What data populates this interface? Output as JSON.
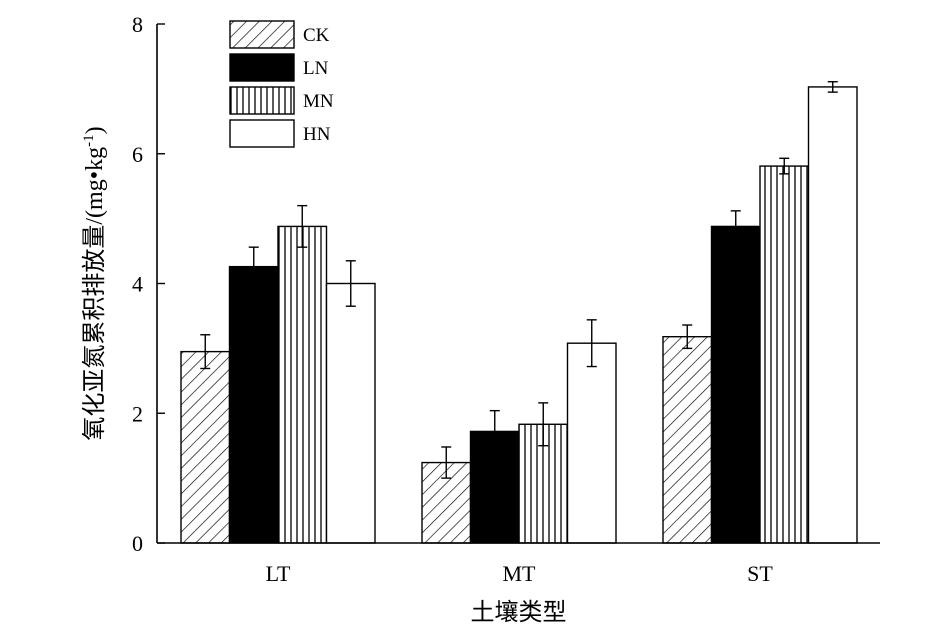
{
  "chart_data": {
    "type": "bar",
    "categories": [
      "LT",
      "MT",
      "ST"
    ],
    "series": [
      {
        "name": "CK",
        "pattern": "hatch",
        "values": [
          2.95,
          1.24,
          3.18
        ],
        "errors": [
          0.26,
          0.24,
          0.18
        ]
      },
      {
        "name": "LN",
        "pattern": "solid",
        "values": [
          4.26,
          1.72,
          4.88
        ],
        "errors": [
          0.3,
          0.32,
          0.24
        ]
      },
      {
        "name": "MN",
        "pattern": "vertical-lines",
        "values": [
          4.88,
          1.83,
          5.81
        ],
        "errors": [
          0.32,
          0.33,
          0.12
        ]
      },
      {
        "name": "HN",
        "pattern": "white",
        "values": [
          4.0,
          3.08,
          7.03
        ],
        "errors": [
          0.35,
          0.36,
          0.08
        ]
      }
    ],
    "xlabel": "土壤类型",
    "ylabel": "氧化亚氮累积排放量/(mg•kg",
    "ylabel_sup": "-1",
    "ylabel_close": ")",
    "ylim": [
      0,
      8
    ],
    "yticks": [
      "0",
      "2",
      "4",
      "6",
      "8"
    ],
    "legend_position": "top-left",
    "grid": false,
    "colors": {
      "axis": "#000000",
      "solid": "#000000",
      "empty": "#ffffff"
    }
  }
}
